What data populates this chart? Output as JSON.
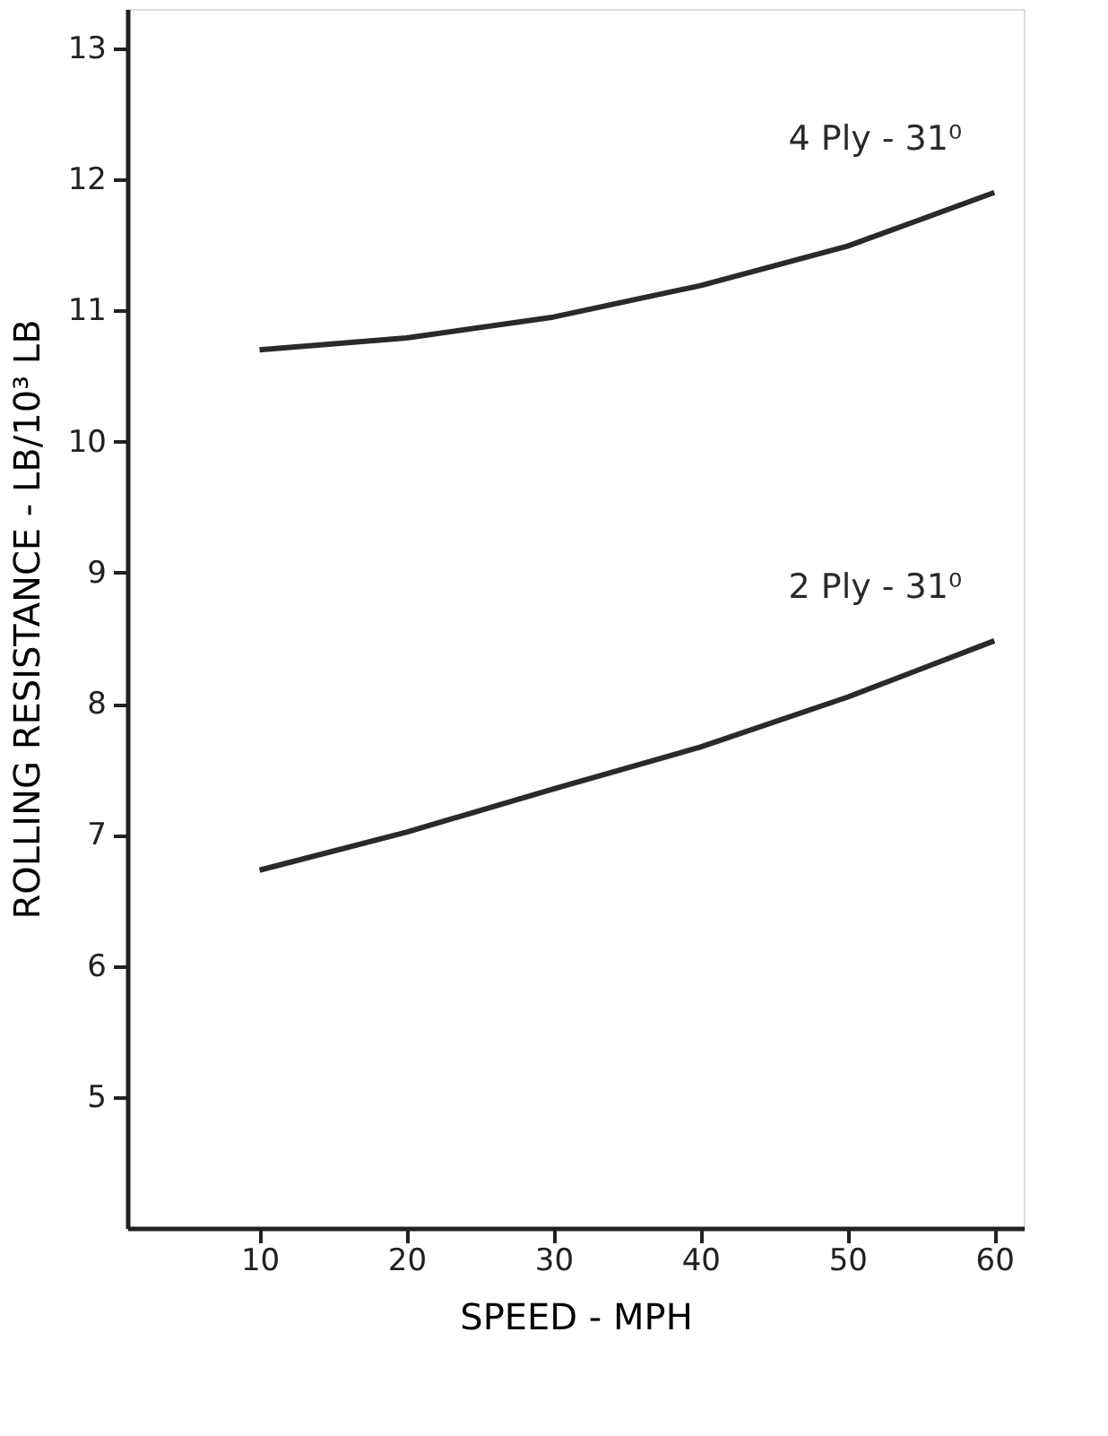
{
  "chart_data": {
    "type": "line",
    "xlabel": "SPEED - MPH",
    "ylabel": "ROLLING RESISTANCE - LB/10³ LB",
    "x": [
      10,
      20,
      30,
      40,
      50,
      60
    ],
    "series": [
      {
        "name": "4 Ply - 31⁰",
        "color": "#2a2a2a",
        "values": [
          10.7,
          10.79,
          10.95,
          11.19,
          11.49,
          11.9
        ]
      },
      {
        "name": "2 Ply - 31⁰",
        "color": "#2a2a2a",
        "values": [
          6.73,
          7.02,
          7.35,
          7.67,
          8.05,
          8.48
        ]
      }
    ],
    "xlim": [
      1,
      62
    ],
    "ylim": [
      4,
      13.3
    ],
    "xticks": [
      10,
      20,
      30,
      40,
      50,
      60
    ],
    "yticks": [
      5,
      6,
      7,
      8,
      9,
      10,
      11,
      12,
      13
    ],
    "grid": false,
    "legend": false,
    "marker": "none",
    "line_style": "solid"
  }
}
